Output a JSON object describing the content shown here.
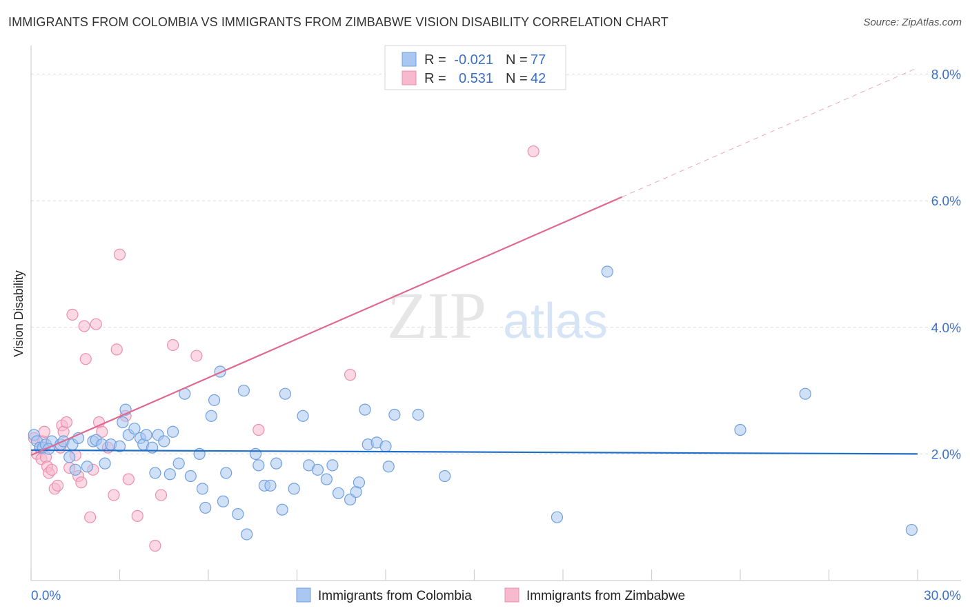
{
  "title": "IMMIGRANTS FROM COLOMBIA VS IMMIGRANTS FROM ZIMBABWE VISION DISABILITY CORRELATION CHART",
  "source": "Source: ZipAtlas.com",
  "watermark": {
    "zip": "ZIP",
    "atlas": "atlas"
  },
  "colors": {
    "blue_fill": "#a9c7f1",
    "blue_stroke": "#6fa0e0",
    "blue_line": "#1f6fc9",
    "pink_fill": "#f6b9cd",
    "pink_stroke": "#ec8fad",
    "pink_line": "#e0698f",
    "tick_text": "#3b70c8",
    "grid": "#dcdcdc"
  },
  "legend": {
    "rows": [
      {
        "r_label": "R =",
        "r_value": "-0.021",
        "n_label": "N =",
        "n_value": "77",
        "series": "blue"
      },
      {
        "r_label": "R =",
        "r_value": "0.531",
        "n_label": "N =",
        "n_value": "42",
        "series": "pink"
      }
    ]
  },
  "bottom_legend": [
    {
      "label": "Immigrants from Colombia",
      "series": "blue"
    },
    {
      "label": "Immigrants from Zimbabwe",
      "series": "pink"
    }
  ],
  "chart_data": {
    "type": "scatter",
    "title": "IMMIGRANTS FROM COLOMBIA VS IMMIGRANTS FROM ZIMBABWE VISION DISABILITY CORRELATION CHART",
    "xlabel": "",
    "ylabel": "Vision Disability",
    "xlim": [
      0,
      30
    ],
    "ylim": [
      0,
      8.3
    ],
    "x_tick_labels": [
      {
        "x": 0,
        "label": "0.0%"
      },
      {
        "x": 30,
        "label": "30.0%"
      }
    ],
    "y_ticks": [
      {
        "y": 2,
        "label": "2.0%"
      },
      {
        "y": 4,
        "label": "4.0%"
      },
      {
        "y": 6,
        "label": "6.0%"
      },
      {
        "y": 8,
        "label": "8.0%"
      }
    ],
    "series": [
      {
        "name": "Immigrants from Colombia",
        "color": "blue",
        "trend": {
          "x0": 0,
          "y0": 2.06,
          "x1": 30,
          "y1": 2.0
        },
        "points": [
          [
            0.1,
            2.3
          ],
          [
            0.2,
            2.2
          ],
          [
            0.3,
            2.1
          ],
          [
            0.4,
            2.1
          ],
          [
            0.5,
            2.15
          ],
          [
            0.7,
            2.2
          ],
          [
            1.0,
            2.15
          ],
          [
            1.1,
            2.2
          ],
          [
            1.3,
            1.95
          ],
          [
            1.4,
            2.15
          ],
          [
            1.5,
            1.75
          ],
          [
            1.6,
            2.25
          ],
          [
            1.9,
            1.8
          ],
          [
            2.1,
            2.2
          ],
          [
            2.2,
            2.22
          ],
          [
            2.4,
            2.15
          ],
          [
            2.5,
            1.85
          ],
          [
            2.7,
            2.15
          ],
          [
            3.0,
            2.12
          ],
          [
            3.1,
            2.5
          ],
          [
            3.2,
            2.7
          ],
          [
            3.3,
            2.3
          ],
          [
            3.5,
            2.4
          ],
          [
            3.7,
            2.25
          ],
          [
            3.8,
            2.15
          ],
          [
            3.9,
            2.3
          ],
          [
            4.1,
            2.1
          ],
          [
            4.2,
            1.7
          ],
          [
            4.3,
            2.3
          ],
          [
            4.5,
            2.2
          ],
          [
            4.7,
            1.68
          ],
          [
            4.8,
            2.35
          ],
          [
            5.0,
            1.85
          ],
          [
            5.2,
            2.95
          ],
          [
            5.4,
            1.65
          ],
          [
            5.7,
            2.0
          ],
          [
            5.8,
            1.45
          ],
          [
            5.9,
            1.15
          ],
          [
            6.1,
            2.6
          ],
          [
            6.2,
            2.85
          ],
          [
            6.4,
            3.3
          ],
          [
            6.5,
            1.25
          ],
          [
            6.6,
            1.7
          ],
          [
            7.0,
            1.05
          ],
          [
            7.2,
            3.0
          ],
          [
            7.3,
            0.73
          ],
          [
            7.6,
            2.0
          ],
          [
            7.7,
            1.82
          ],
          [
            7.9,
            1.5
          ],
          [
            8.1,
            1.5
          ],
          [
            8.3,
            1.85
          ],
          [
            8.5,
            1.12
          ],
          [
            8.6,
            2.95
          ],
          [
            8.9,
            1.45
          ],
          [
            9.2,
            2.6
          ],
          [
            9.4,
            1.82
          ],
          [
            9.7,
            1.75
          ],
          [
            10.0,
            1.6
          ],
          [
            10.2,
            1.82
          ],
          [
            10.4,
            1.38
          ],
          [
            10.8,
            1.28
          ],
          [
            11.0,
            1.4
          ],
          [
            11.1,
            1.55
          ],
          [
            11.3,
            2.7
          ],
          [
            11.4,
            2.15
          ],
          [
            11.7,
            2.18
          ],
          [
            12.0,
            2.12
          ],
          [
            12.1,
            1.8
          ],
          [
            12.3,
            2.62
          ],
          [
            13.1,
            2.62
          ],
          [
            14.0,
            1.65
          ],
          [
            17.8,
            1.0
          ],
          [
            19.5,
            4.88
          ],
          [
            24.0,
            2.38
          ],
          [
            26.2,
            2.95
          ],
          [
            29.8,
            0.8
          ],
          [
            0.6,
            2.08
          ]
        ]
      },
      {
        "name": "Immigrants from Zimbabwe",
        "color": "pink",
        "trend": {
          "x0": 0,
          "y0": 1.98,
          "x1": 30,
          "y1": 8.1,
          "solid_until_x": 20.0
        },
        "points": [
          [
            0.1,
            2.25
          ],
          [
            0.2,
            2.0
          ],
          [
            0.3,
            2.1
          ],
          [
            0.35,
            1.92
          ],
          [
            0.4,
            2.2
          ],
          [
            0.5,
            1.95
          ],
          [
            0.55,
            1.8
          ],
          [
            0.6,
            1.7
          ],
          [
            0.7,
            1.75
          ],
          [
            0.8,
            1.45
          ],
          [
            0.9,
            1.5
          ],
          [
            1.0,
            2.1
          ],
          [
            1.05,
            2.45
          ],
          [
            1.1,
            2.35
          ],
          [
            1.2,
            2.5
          ],
          [
            1.3,
            1.78
          ],
          [
            1.4,
            4.2
          ],
          [
            1.5,
            1.98
          ],
          [
            1.6,
            1.65
          ],
          [
            1.7,
            1.55
          ],
          [
            1.8,
            4.02
          ],
          [
            1.85,
            3.5
          ],
          [
            2.0,
            1.0
          ],
          [
            2.1,
            1.75
          ],
          [
            2.2,
            4.05
          ],
          [
            2.3,
            2.5
          ],
          [
            2.4,
            2.35
          ],
          [
            2.6,
            2.1
          ],
          [
            2.8,
            1.35
          ],
          [
            2.9,
            3.65
          ],
          [
            3.0,
            5.15
          ],
          [
            3.2,
            2.6
          ],
          [
            3.3,
            1.6
          ],
          [
            3.6,
            1.02
          ],
          [
            4.2,
            0.55
          ],
          [
            4.4,
            1.35
          ],
          [
            4.8,
            3.72
          ],
          [
            5.6,
            3.55
          ],
          [
            7.7,
            2.38
          ],
          [
            10.8,
            3.25
          ],
          [
            17.0,
            6.78
          ],
          [
            0.45,
            2.35
          ]
        ]
      }
    ]
  }
}
